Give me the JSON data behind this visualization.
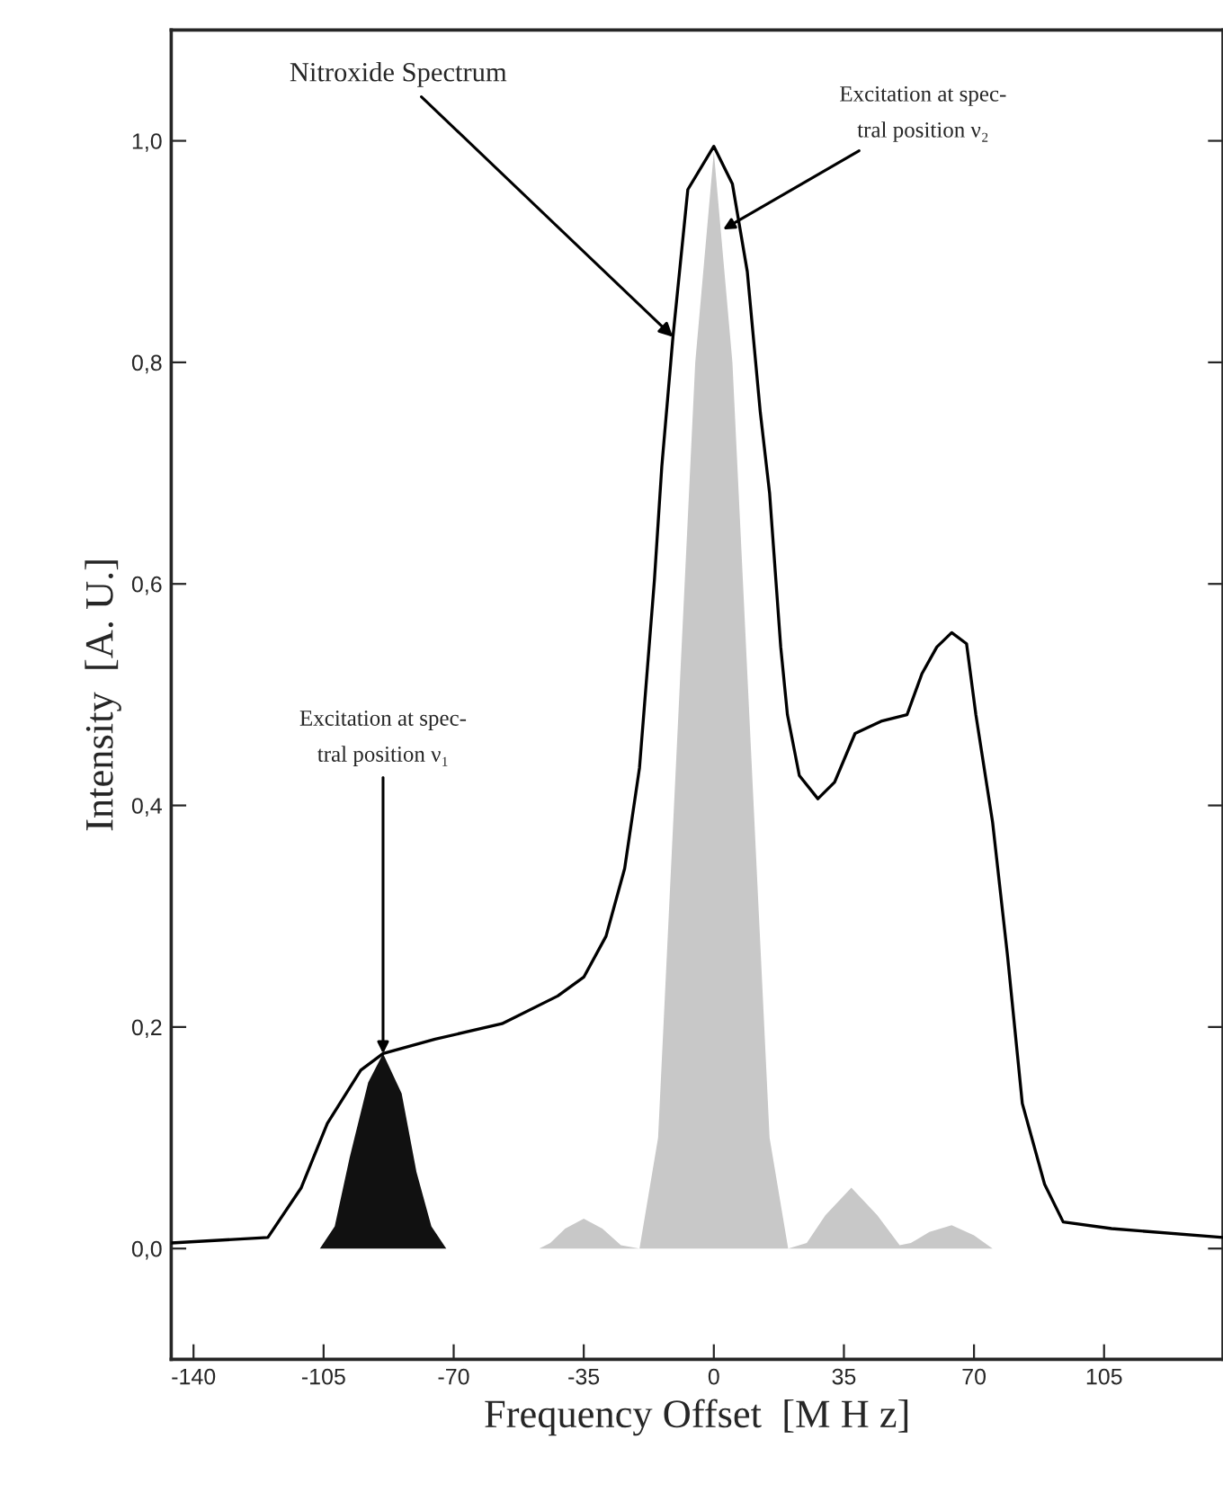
{
  "chart_data": {
    "type": "line",
    "xlabel": "Frequency Offset  [M H z]",
    "ylabel": "Intensity  [A. U.]",
    "xlim": [
      -146,
      137
    ],
    "ylim": [
      -0.1,
      1.1
    ],
    "xticks": [
      -140,
      -105,
      -70,
      -35,
      0,
      35,
      70,
      105
    ],
    "yticks": [
      {
        "value": 0,
        "label": "0,0"
      },
      {
        "value": 0.2,
        "label": "0,2"
      },
      {
        "value": 0.4,
        "label": "0,4"
      },
      {
        "value": 0.6,
        "label": "0,6"
      },
      {
        "value": 0.8,
        "label": "0,8"
      },
      {
        "value": 1.0,
        "label": "1,0"
      }
    ],
    "grid": false,
    "legend": false,
    "series": [
      {
        "type": "area",
        "color": "#c8c8c8",
        "x": [
          -47,
          -44,
          -40,
          -35,
          -30,
          -25,
          -20,
          -15,
          -10,
          -5,
          0,
          5,
          10,
          15,
          20,
          25,
          30,
          37,
          44,
          50,
          53,
          58,
          64,
          70,
          75
        ],
        "values": [
          0,
          0.005,
          0.018,
          0.027,
          0.018,
          0.003,
          0,
          0.1,
          0.45,
          0.8,
          0.99,
          0.8,
          0.45,
          0.1,
          0,
          0.005,
          0.03,
          0.055,
          0.03,
          0.003,
          0.005,
          0.015,
          0.021,
          0.012,
          0
        ]
      },
      {
        "type": "area",
        "color": "#111111",
        "x": [
          -106,
          -102,
          -98,
          -93,
          -89,
          -84,
          -80,
          -76,
          -72
        ],
        "values": [
          0,
          0.02,
          0.082,
          0.15,
          0.176,
          0.14,
          0.069,
          0.02,
          0
        ]
      },
      {
        "color": "#000000",
        "x": [
          -146,
          -120,
          -111,
          -104,
          -95,
          -89,
          -75,
          -57,
          -42,
          -35,
          -29,
          -24,
          -20,
          -16,
          -14,
          -11,
          -7,
          0,
          5,
          9,
          12.5,
          15,
          18,
          19.8,
          23,
          28,
          32.5,
          38,
          45,
          52,
          56,
          60,
          64,
          68,
          70.5,
          75,
          79,
          83,
          89,
          94,
          107,
          137
        ],
        "values": [
          0.005,
          0.01,
          0.055,
          0.113,
          0.161,
          0.176,
          0.189,
          0.203,
          0.228,
          0.245,
          0.282,
          0.343,
          0.434,
          0.603,
          0.706,
          0.823,
          0.956,
          0.995,
          0.961,
          0.882,
          0.755,
          0.682,
          0.543,
          0.482,
          0.427,
          0.406,
          0.421,
          0.465,
          0.476,
          0.482,
          0.519,
          0.543,
          0.556,
          0.546,
          0.482,
          0.385,
          0.265,
          0.131,
          0.058,
          0.024,
          0.018,
          0.01
        ]
      }
    ],
    "annotations": [
      {
        "text": "Nitroxide Spectrum",
        "x": -11,
        "y": 0.823
      },
      {
        "text": "Excitation at spec-\ntral position ν₂",
        "x": 2.5,
        "y": 0.92
      },
      {
        "text": "Excitation at spec-\ntral position ν₁",
        "x": -89,
        "y": 0.176
      }
    ]
  }
}
